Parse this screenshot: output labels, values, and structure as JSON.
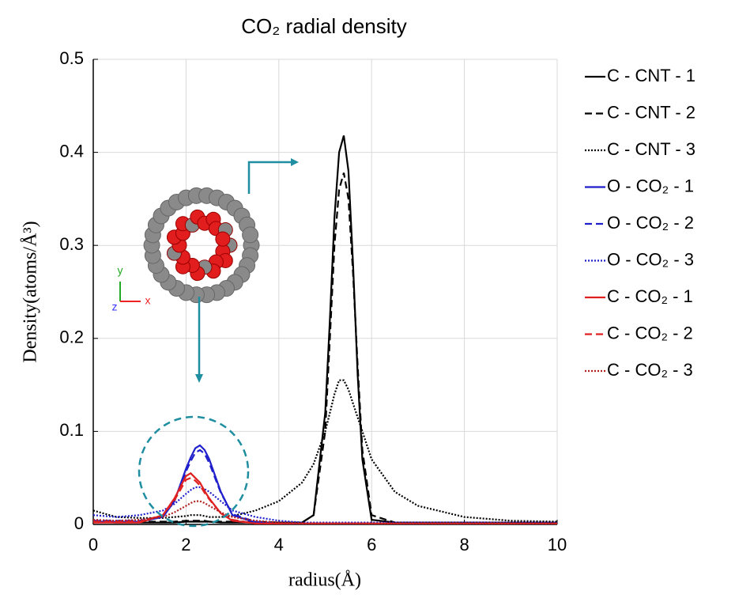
{
  "chart_data": {
    "type": "line",
    "title": "CO₂ radial density",
    "x_label": "radius(Å)",
    "y_label": "Density(atoms/Å³)",
    "annotations": [
      "y",
      "z",
      "x"
    ],
    "xlim": [
      0,
      10
    ],
    "xticks": [
      0,
      2,
      4,
      6,
      8,
      10
    ],
    "ylim": [
      0,
      0.5
    ],
    "yticks": [
      0,
      0.1,
      0.2,
      0.3,
      0.4,
      0.5
    ],
    "grid": true,
    "legend": "outside-right",
    "x": [
      0,
      0.5,
      1,
      1.5,
      1.75,
      2,
      2.1,
      2.2,
      2.3,
      2.4,
      2.5,
      2.75,
      3,
      3.5,
      4,
      4.5,
      4.75,
      5,
      5.1,
      5.2,
      5.3,
      5.4,
      5.5,
      5.6,
      5.7,
      5.8,
      6,
      6.5,
      7,
      8,
      9,
      10
    ],
    "series": [
      {
        "name": "C - CNT - 1",
        "color": "#000000",
        "dash": "solid",
        "values": [
          0.003,
          0.002,
          0.002,
          0.002,
          0.002,
          0.003,
          0.003,
          0.003,
          0.003,
          0.003,
          0.003,
          0.002,
          0.002,
          0.002,
          0.002,
          0.002,
          0.01,
          0.12,
          0.22,
          0.33,
          0.4,
          0.418,
          0.38,
          0.28,
          0.16,
          0.07,
          0.005,
          0.002,
          0.002,
          0.002,
          0.002,
          0.002
        ]
      },
      {
        "name": "C - CNT - 2",
        "color": "#000000",
        "dash": "dashed",
        "values": [
          0.004,
          0.003,
          0.003,
          0.003,
          0.003,
          0.004,
          0.004,
          0.004,
          0.004,
          0.004,
          0.003,
          0.003,
          0.003,
          0.003,
          0.002,
          0.002,
          0.01,
          0.1,
          0.2,
          0.3,
          0.36,
          0.378,
          0.35,
          0.27,
          0.17,
          0.08,
          0.01,
          0.002,
          0.002,
          0.002,
          0.002,
          0.002
        ]
      },
      {
        "name": "C - CNT - 3",
        "color": "#000000",
        "dash": "dotted",
        "values": [
          0.015,
          0.008,
          0.007,
          0.007,
          0.008,
          0.009,
          0.01,
          0.01,
          0.01,
          0.009,
          0.008,
          0.008,
          0.009,
          0.015,
          0.025,
          0.045,
          0.065,
          0.1,
          0.12,
          0.14,
          0.155,
          0.155,
          0.145,
          0.13,
          0.115,
          0.1,
          0.07,
          0.035,
          0.02,
          0.008,
          0.004,
          0.003
        ]
      },
      {
        "name": "O - CO₂ - 1",
        "color": "#1f1fcc",
        "dash": "solid",
        "values": [
          0.003,
          0.003,
          0.003,
          0.008,
          0.025,
          0.06,
          0.072,
          0.082,
          0.085,
          0.08,
          0.07,
          0.035,
          0.01,
          0.002,
          0.001,
          0.001,
          0.001,
          0.001,
          0.001,
          0.001,
          0.001,
          0.001,
          0.001,
          0.001,
          0.001,
          0.001,
          0.001,
          0.001,
          0.001,
          0.001,
          0.001,
          0.001
        ]
      },
      {
        "name": "O - CO₂ - 2",
        "color": "#1f1fcc",
        "dash": "dashed",
        "values": [
          0.004,
          0.004,
          0.004,
          0.009,
          0.025,
          0.057,
          0.068,
          0.077,
          0.08,
          0.076,
          0.066,
          0.034,
          0.011,
          0.003,
          0.001,
          0.001,
          0.001,
          0.001,
          0.001,
          0.001,
          0.001,
          0.001,
          0.001,
          0.001,
          0.001,
          0.001,
          0.001,
          0.001,
          0.001,
          0.001,
          0.001,
          0.001
        ]
      },
      {
        "name": "O - CO₂ - 3",
        "color": "#1f1fcc",
        "dash": "dotted",
        "values": [
          0.01,
          0.008,
          0.01,
          0.015,
          0.022,
          0.033,
          0.037,
          0.04,
          0.04,
          0.038,
          0.035,
          0.025,
          0.015,
          0.008,
          0.004,
          0.002,
          0.002,
          0.002,
          0.002,
          0.002,
          0.002,
          0.002,
          0.002,
          0.002,
          0.002,
          0.002,
          0.002,
          0.002,
          0.002,
          0.002,
          0.002,
          0.002
        ]
      },
      {
        "name": "C - CO₂ - 1",
        "color": "#e02020",
        "dash": "solid",
        "values": [
          0.002,
          0.002,
          0.002,
          0.01,
          0.028,
          0.052,
          0.055,
          0.05,
          0.045,
          0.036,
          0.028,
          0.012,
          0.004,
          0.001,
          0.001,
          0.001,
          0.001,
          0.001,
          0.001,
          0.001,
          0.001,
          0.001,
          0.001,
          0.001,
          0.001,
          0.001,
          0.001,
          0.001,
          0.001,
          0.001,
          0.001,
          0.001
        ]
      },
      {
        "name": "C - CO₂ - 2",
        "color": "#e02020",
        "dash": "dashed",
        "values": [
          0.003,
          0.003,
          0.003,
          0.01,
          0.026,
          0.048,
          0.05,
          0.047,
          0.042,
          0.034,
          0.027,
          0.012,
          0.005,
          0.001,
          0.001,
          0.001,
          0.001,
          0.001,
          0.001,
          0.001,
          0.001,
          0.001,
          0.001,
          0.001,
          0.001,
          0.001,
          0.001,
          0.001,
          0.001,
          0.001,
          0.001,
          0.001
        ]
      },
      {
        "name": "C - CO₂ - 3",
        "color": "#b02020",
        "dash": "dotted",
        "values": [
          0.005,
          0.004,
          0.005,
          0.008,
          0.013,
          0.02,
          0.023,
          0.025,
          0.025,
          0.023,
          0.02,
          0.013,
          0.008,
          0.004,
          0.002,
          0.001,
          0.001,
          0.001,
          0.001,
          0.001,
          0.001,
          0.001,
          0.001,
          0.001,
          0.001,
          0.001,
          0.001,
          0.001,
          0.001,
          0.001,
          0.001,
          0.001
        ]
      }
    ]
  }
}
